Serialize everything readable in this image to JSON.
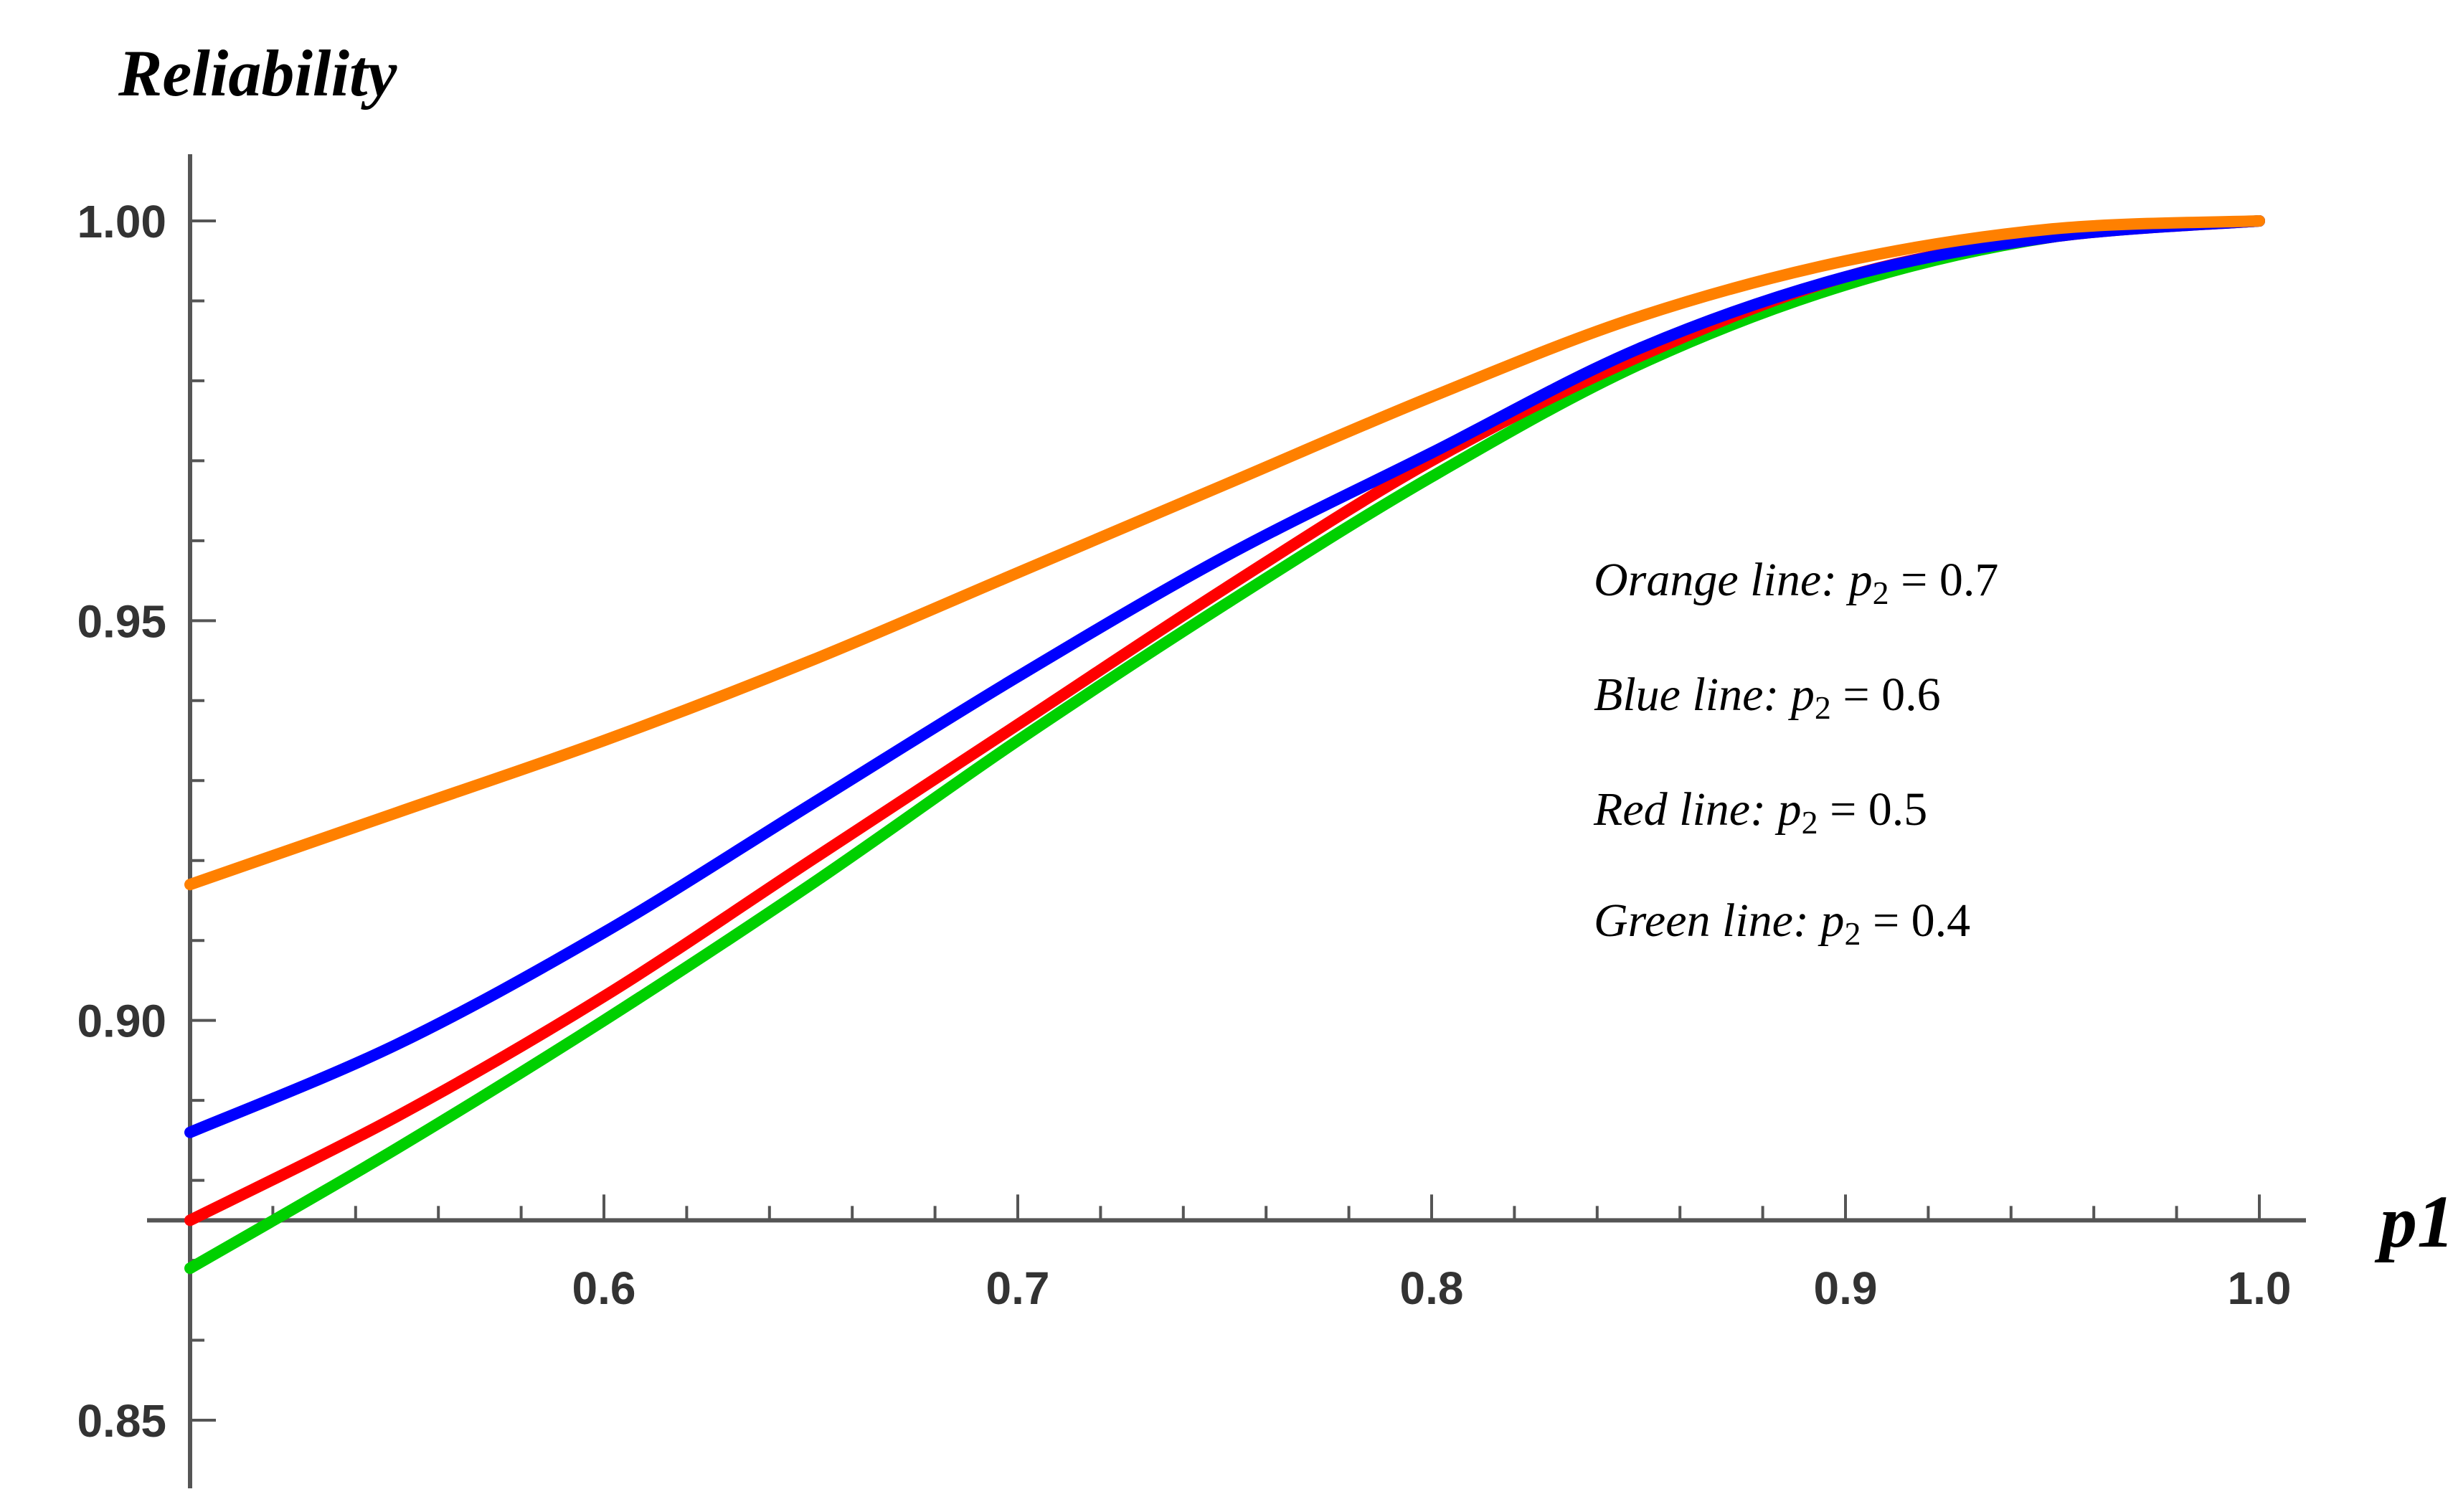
{
  "chart_data": {
    "type": "line",
    "ylabel": "Reliability",
    "xlabel": "p1",
    "xlim": [
      0.5,
      1.0
    ],
    "ylim": [
      0.845,
      1.008
    ],
    "x_origin": 0.5,
    "y_origin": 0.875,
    "x_ticks": [
      "0.6",
      "0.7",
      "0.8",
      "0.9",
      "1.0"
    ],
    "y_ticks": [
      "0.85",
      "0.90",
      "0.95",
      "1.00"
    ],
    "x_tick_values": [
      0.6,
      0.7,
      0.8,
      0.9,
      1.0
    ],
    "y_tick_values": [
      0.85,
      0.9,
      0.95,
      1.0
    ],
    "x": [
      0.5,
      0.55,
      0.6,
      0.65,
      0.7,
      0.75,
      0.8,
      0.85,
      0.9,
      0.95,
      1.0
    ],
    "series": [
      {
        "name": "Orange",
        "color": "#ff8000",
        "p2": "0.7",
        "values": [
          0.917,
          0.926,
          0.935,
          0.945,
          0.956,
          0.967,
          0.978,
          0.988,
          0.995,
          0.999,
          1.0
        ]
      },
      {
        "name": "Blue",
        "color": "#0000ff",
        "p2": "0.6",
        "values": [
          0.886,
          0.897,
          0.911,
          0.927,
          0.943,
          0.958,
          0.971,
          0.984,
          0.993,
          0.998,
          1.0
        ]
      },
      {
        "name": "Red",
        "color": "#ff0000",
        "p2": "0.5",
        "values": [
          0.875,
          0.888,
          0.903,
          0.92,
          0.937,
          0.954,
          0.97,
          0.983,
          0.993,
          0.998,
          1.0
        ]
      },
      {
        "name": "Green",
        "color": "#00d000",
        "p2": "0.4",
        "values": [
          0.869,
          0.884,
          0.9,
          0.917,
          0.935,
          0.952,
          0.968,
          0.982,
          0.992,
          0.998,
          1.0
        ]
      }
    ],
    "legend": [
      {
        "label": "Orange line",
        "var": "p",
        "sub": "2",
        "eq": " = 0.7"
      },
      {
        "label": "Blue line",
        "var": "p",
        "sub": "2",
        "eq": " = 0.6"
      },
      {
        "label": "Red line",
        "var": "p",
        "sub": "2",
        "eq": " = 0.5"
      },
      {
        "label": "Green line",
        "var": "p",
        "sub": "2",
        "eq": " = 0.4"
      }
    ]
  }
}
